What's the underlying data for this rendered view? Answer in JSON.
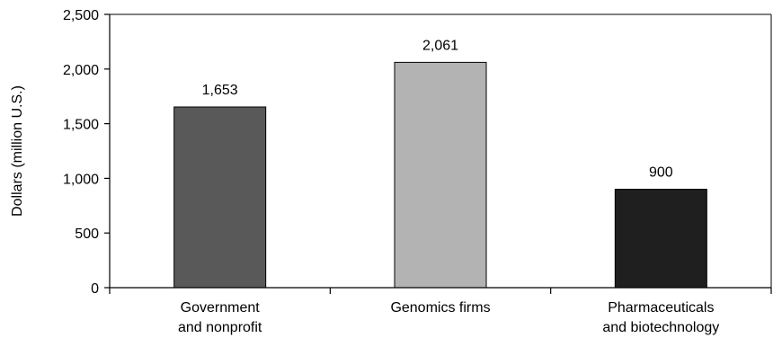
{
  "chart_data": {
    "type": "bar",
    "title": "",
    "xlabel": "",
    "ylabel": "Dollars (million U.S.)",
    "ylim": [
      0,
      2500
    ],
    "yticks": [
      0,
      500,
      1000,
      1500,
      2000,
      2500
    ],
    "ytick_labels": [
      "0",
      "500",
      "1,000",
      "1,500",
      "2,000",
      "2,500"
    ],
    "categories": [
      [
        "Government",
        "and nonprofit"
      ],
      [
        "Genomics firms"
      ],
      [
        "Pharmaceuticals",
        "and biotechnology"
      ]
    ],
    "values": [
      1653,
      2061,
      900
    ],
    "value_labels": [
      "1,653",
      "2,061",
      "900"
    ],
    "bar_colors": [
      "#595959",
      "#b3b3b3",
      "#1f1f1f"
    ],
    "grid": false,
    "legend": "none"
  }
}
